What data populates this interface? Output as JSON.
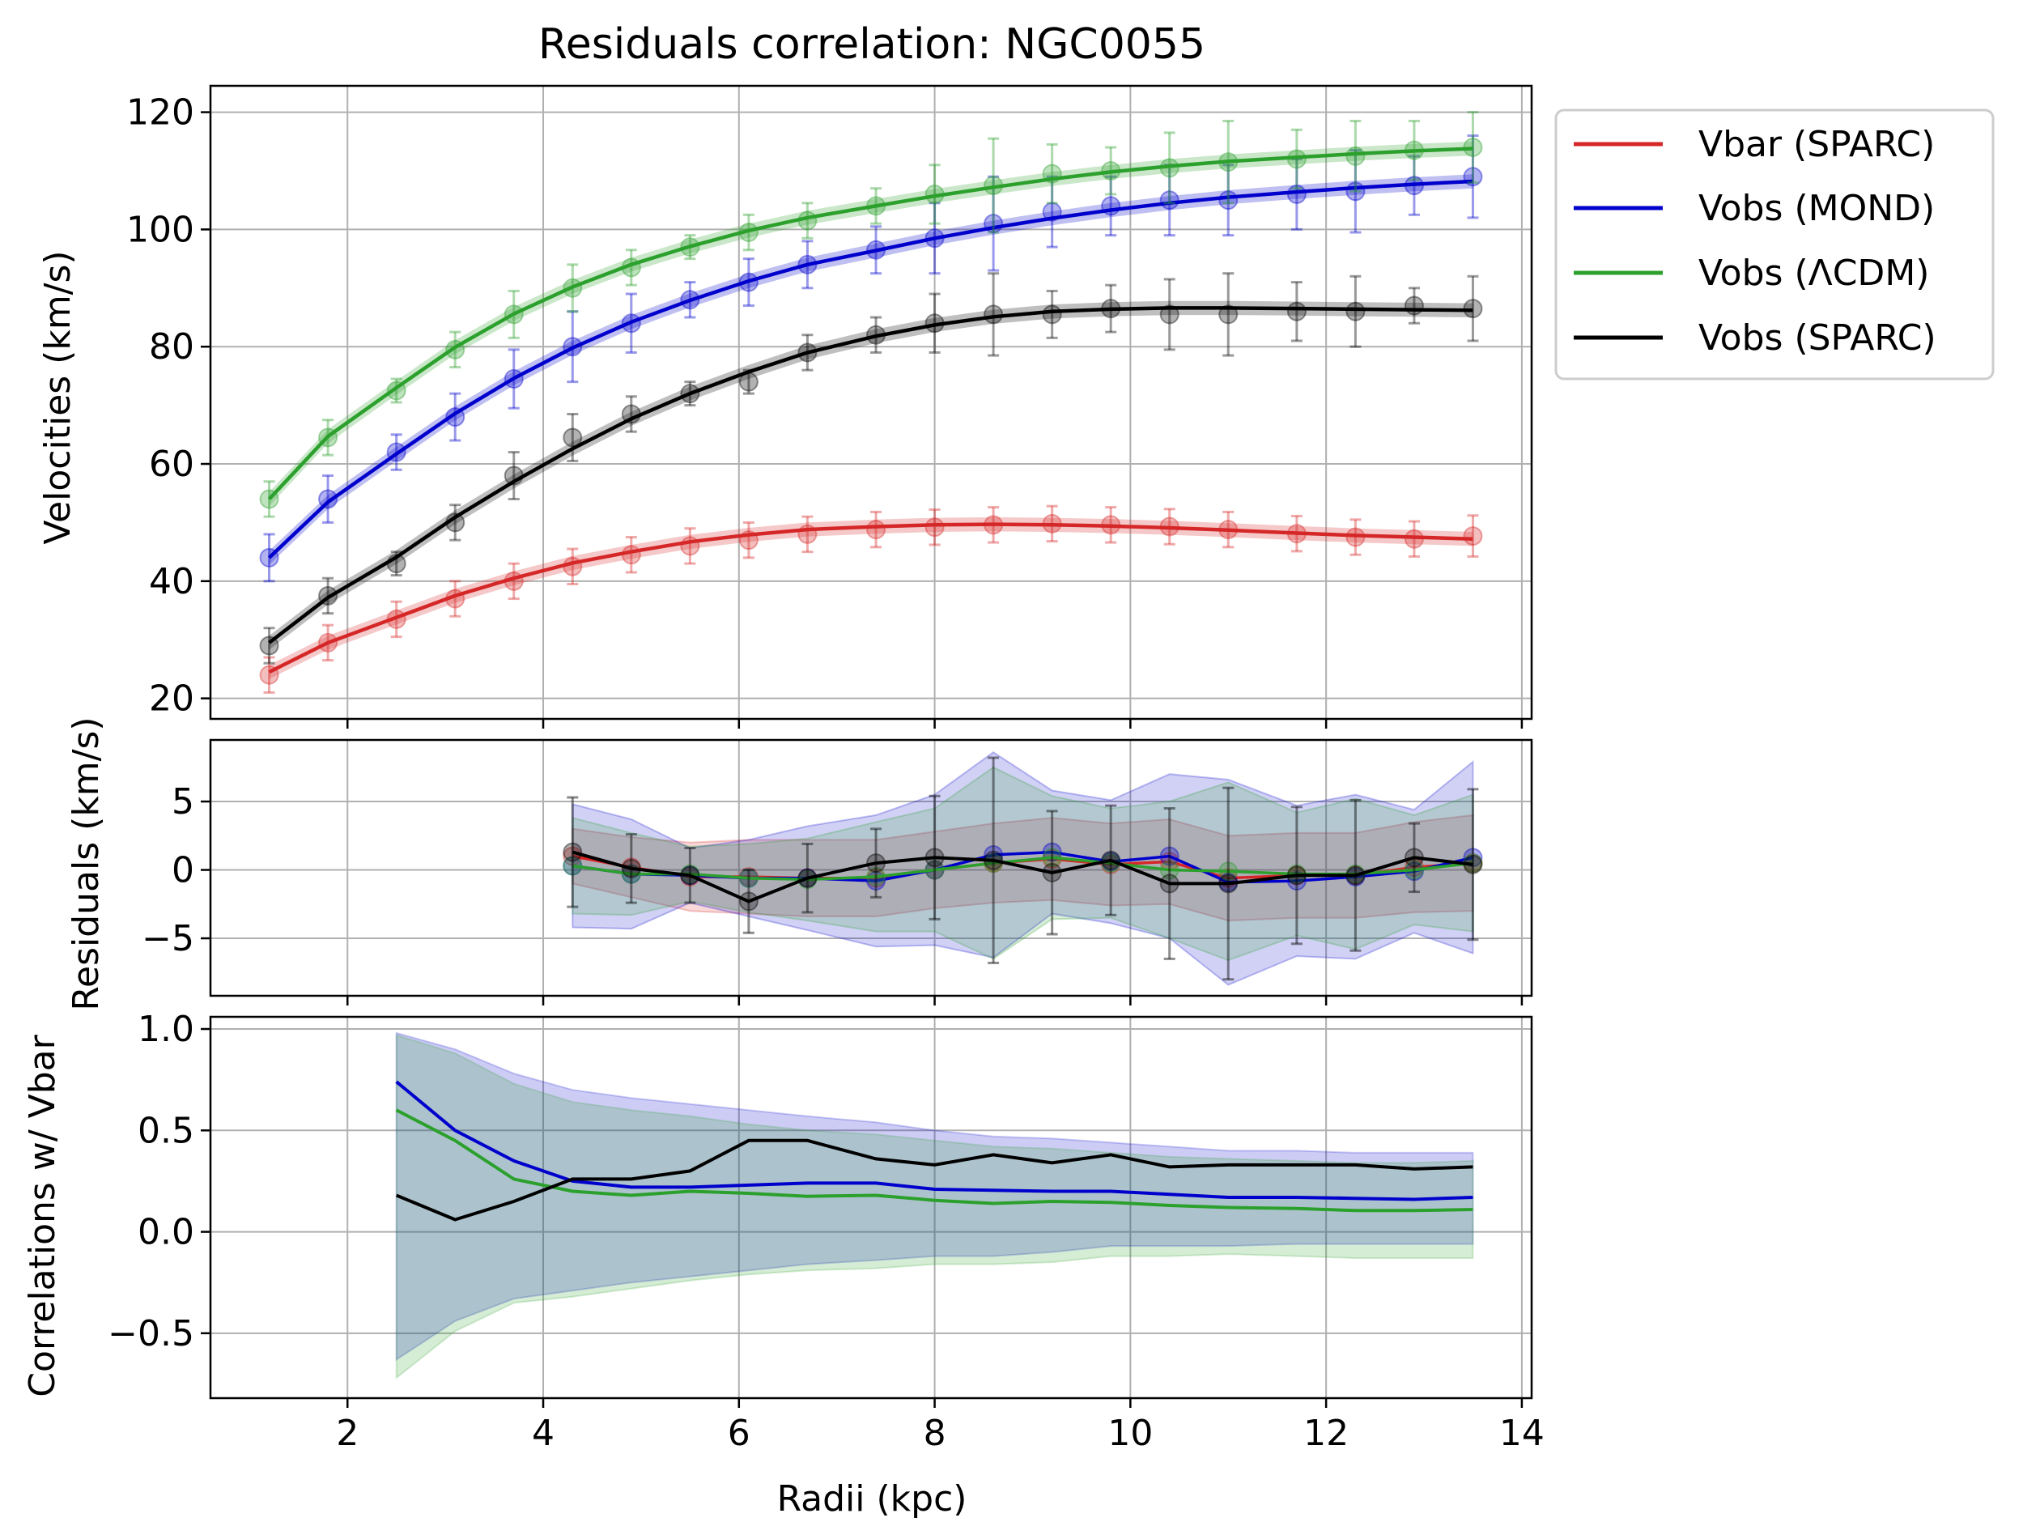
{
  "title": "Residuals correlation: NGC0055",
  "colors": {
    "vbar": "#d62728",
    "mond": "#0000cc",
    "lcdm": "#2ca02c",
    "sparc": "#000000"
  },
  "legend": [
    {
      "key": "vbar",
      "label": "Vbar (SPARC)"
    },
    {
      "key": "mond",
      "label": "Vobs (MOND)"
    },
    {
      "key": "lcdm",
      "label": "Vobs (ΛCDM)"
    },
    {
      "key": "sparc",
      "label": "Vobs (SPARC)"
    }
  ],
  "chart_data": [
    {
      "type": "line",
      "panel": "velocities",
      "ylabel": "Velocities (km/s)",
      "xlim": [
        0.6,
        14.1
      ],
      "ylim": [
        16.5,
        124.5
      ],
      "yticks": [
        20,
        40,
        60,
        80,
        100,
        120
      ],
      "grid": true,
      "legend_position": "outside-top-right",
      "x": [
        1.2,
        1.8,
        2.5,
        3.1,
        3.7,
        4.3,
        4.9,
        5.5,
        6.1,
        6.7,
        7.4,
        8.0,
        8.6,
        9.2,
        9.8,
        10.4,
        11.0,
        11.7,
        12.3,
        12.9,
        13.5
      ],
      "series": [
        {
          "key": "vbar",
          "points": [
            24,
            29.5,
            33.5,
            37,
            40,
            42.5,
            44.5,
            46,
            47,
            48,
            48.8,
            49.2,
            49.6,
            49.8,
            49.6,
            49.3,
            48.8,
            48.1,
            47.5,
            47.2,
            47.7
          ],
          "errors": [
            3,
            3,
            3,
            3,
            3,
            3,
            3,
            3,
            3,
            3,
            3,
            3,
            3,
            3,
            3,
            3,
            3,
            3,
            3,
            3,
            3.5
          ],
          "curve": [
            24.5,
            29.5,
            33.8,
            37.5,
            40.5,
            43.1,
            45.0,
            46.7,
            47.9,
            48.8,
            49.3,
            49.6,
            49.7,
            49.6,
            49.4,
            49.1,
            48.7,
            48.2,
            47.8,
            47.5,
            47.2
          ]
        },
        {
          "key": "mond",
          "points": [
            44,
            54,
            62,
            68,
            74.5,
            80,
            84,
            88,
            91,
            94,
            96.5,
            98.5,
            101,
            103,
            104,
            105,
            105,
            106,
            106.5,
            107.5,
            109
          ],
          "errors": [
            4,
            4,
            3,
            4,
            5,
            6,
            5,
            3,
            4,
            4,
            4,
            6,
            8,
            6,
            5,
            6,
            6,
            6,
            7,
            5,
            7
          ],
          "curve": [
            44,
            53.5,
            61.7,
            68.6,
            74.6,
            79.8,
            84.2,
            87.9,
            91.2,
            94.0,
            96.4,
            98.5,
            100.3,
            101.9,
            103.3,
            104.5,
            105.5,
            106.4,
            107.1,
            107.7,
            108.2
          ]
        },
        {
          "key": "lcdm",
          "points": [
            54,
            64.5,
            72.5,
            79.5,
            85.5,
            90,
            93.5,
            97,
            99.5,
            101.5,
            104,
            106,
            107.5,
            109.5,
            110,
            110.5,
            111.5,
            112,
            112.5,
            113.5,
            114
          ],
          "errors": [
            3,
            3,
            2,
            3,
            4,
            4,
            3,
            2,
            3,
            3,
            3,
            5,
            8,
            5,
            4,
            6,
            7,
            5,
            6,
            5,
            6
          ],
          "curve": [
            54,
            64.7,
            73.0,
            79.9,
            85.6,
            90.2,
            94.0,
            97.1,
            99.8,
            102.0,
            104.0,
            105.7,
            107.2,
            108.6,
            109.8,
            110.8,
            111.6,
            112.3,
            112.9,
            113.4,
            113.8
          ]
        },
        {
          "key": "sparc",
          "points": [
            29,
            37.5,
            43,
            50,
            58,
            64.5,
            68.5,
            72,
            74,
            79,
            82,
            84,
            85.5,
            85.5,
            86.5,
            85.5,
            85.5,
            86,
            86,
            87,
            86.5
          ],
          "errors": [
            3,
            3,
            2,
            3,
            4,
            4,
            3,
            2,
            2,
            3,
            3,
            5,
            7,
            4,
            4,
            6,
            7,
            5,
            6,
            3,
            5.5
          ],
          "curve": [
            29.5,
            37.2,
            44.1,
            50.9,
            57.0,
            62.6,
            67.7,
            72.0,
            75.7,
            79.0,
            81.8,
            83.7,
            85.1,
            86.0,
            86.4,
            86.6,
            86.6,
            86.5,
            86.4,
            86.3,
            86.2
          ]
        }
      ]
    },
    {
      "type": "line",
      "panel": "residuals",
      "ylabel": "Residuals (km/s)",
      "xlim": [
        0.6,
        14.1
      ],
      "ylim": [
        -9.2,
        9.5
      ],
      "yticks": [
        -5,
        0,
        5
      ],
      "grid": true,
      "x": [
        4.3,
        4.9,
        5.5,
        6.1,
        6.7,
        7.4,
        8.0,
        8.6,
        9.2,
        9.8,
        10.4,
        11.0,
        11.7,
        12.3,
        12.9,
        13.5
      ],
      "series": [
        {
          "key": "vbar",
          "values": [
            1.0,
            0.2,
            -0.5,
            -0.5,
            -0.6,
            -0.6,
            0.0,
            0.5,
            0.8,
            0.4,
            0.6,
            -0.6,
            -0.4,
            -0.4,
            0.2,
            0.5
          ],
          "band": [
            2.0,
            2.2,
            2.5,
            2.7,
            2.8,
            2.8,
            2.8,
            2.9,
            3.0,
            3.0,
            3.1,
            3.1,
            3.1,
            3.1,
            3.3,
            3.5
          ]
        },
        {
          "key": "mond",
          "values": [
            0.3,
            -0.3,
            -0.4,
            -0.6,
            -0.6,
            -0.8,
            0.0,
            1.1,
            1.3,
            0.6,
            1.0,
            -0.9,
            -0.8,
            -0.5,
            -0.1,
            0.9
          ],
          "band": [
            4.5,
            4.0,
            2.0,
            2.8,
            3.8,
            4.8,
            5.5,
            7.5,
            4.5,
            4.5,
            6.0,
            7.5,
            5.5,
            6.0,
            4.5,
            7.0
          ]
        },
        {
          "key": "lcdm",
          "values": [
            0.3,
            -0.3,
            -0.3,
            -0.6,
            -0.7,
            -0.5,
            0.0,
            0.5,
            0.9,
            0.5,
            0.0,
            -0.1,
            -0.3,
            -0.3,
            0.0,
            0.5
          ],
          "band": [
            3.5,
            3.0,
            2.0,
            2.5,
            3.0,
            4.0,
            4.5,
            7.0,
            4.5,
            4.0,
            5.0,
            6.5,
            4.5,
            5.5,
            4.0,
            5.0
          ]
        },
        {
          "key": "sparc",
          "values": [
            1.3,
            0.1,
            -0.4,
            -2.3,
            -0.6,
            0.5,
            0.9,
            0.7,
            -0.2,
            0.7,
            -1.0,
            -1.0,
            -0.4,
            -0.4,
            0.9,
            0.4
          ],
          "errors": [
            4.0,
            2.5,
            2.0,
            2.3,
            2.5,
            2.5,
            4.5,
            7.5,
            4.5,
            4.0,
            5.5,
            7.0,
            5.0,
            5.5,
            2.5,
            5.5
          ]
        }
      ]
    },
    {
      "type": "line",
      "panel": "correlations",
      "ylabel": "Correlations w/ Vbar",
      "xlabel": "Radii (kpc)",
      "xlim": [
        0.6,
        14.1
      ],
      "ylim": [
        -0.82,
        1.06
      ],
      "xticks": [
        2,
        4,
        6,
        8,
        10,
        12,
        14
      ],
      "yticks": [
        -0.5,
        0.0,
        0.5,
        1.0
      ],
      "grid": true,
      "x": [
        2.5,
        3.1,
        3.7,
        4.3,
        4.9,
        5.5,
        6.1,
        6.7,
        7.4,
        8.0,
        8.6,
        9.2,
        9.8,
        10.4,
        11.0,
        11.7,
        12.3,
        12.9,
        13.5
      ],
      "series": [
        {
          "key": "mond",
          "values": [
            0.74,
            0.5,
            0.35,
            0.25,
            0.22,
            0.22,
            0.23,
            0.24,
            0.24,
            0.21,
            0.205,
            0.2,
            0.2,
            0.185,
            0.17,
            0.17,
            0.165,
            0.16,
            0.17
          ],
          "upper": [
            0.98,
            0.9,
            0.78,
            0.7,
            0.66,
            0.63,
            0.6,
            0.57,
            0.54,
            0.5,
            0.47,
            0.46,
            0.44,
            0.42,
            0.4,
            0.4,
            0.39,
            0.39,
            0.39
          ],
          "lower": [
            -0.63,
            -0.44,
            -0.33,
            -0.29,
            -0.25,
            -0.22,
            -0.19,
            -0.16,
            -0.14,
            -0.12,
            -0.12,
            -0.1,
            -0.07,
            -0.07,
            -0.07,
            -0.06,
            -0.06,
            -0.06,
            -0.06
          ]
        },
        {
          "key": "lcdm",
          "values": [
            0.6,
            0.45,
            0.26,
            0.2,
            0.18,
            0.2,
            0.19,
            0.175,
            0.18,
            0.155,
            0.14,
            0.15,
            0.145,
            0.13,
            0.12,
            0.115,
            0.105,
            0.105,
            0.11
          ],
          "upper": [
            0.97,
            0.88,
            0.73,
            0.64,
            0.6,
            0.57,
            0.53,
            0.5,
            0.48,
            0.45,
            0.42,
            0.41,
            0.39,
            0.37,
            0.36,
            0.35,
            0.34,
            0.34,
            0.35
          ],
          "lower": [
            -0.72,
            -0.49,
            -0.35,
            -0.32,
            -0.28,
            -0.24,
            -0.21,
            -0.19,
            -0.18,
            -0.16,
            -0.16,
            -0.15,
            -0.12,
            -0.12,
            -0.11,
            -0.12,
            -0.13,
            -0.13,
            -0.13
          ]
        },
        {
          "key": "sparc",
          "values": [
            0.18,
            0.06,
            0.15,
            0.26,
            0.26,
            0.3,
            0.45,
            0.45,
            0.36,
            0.33,
            0.38,
            0.34,
            0.38,
            0.32,
            0.33,
            0.33,
            0.33,
            0.31,
            0.32
          ]
        }
      ]
    }
  ]
}
